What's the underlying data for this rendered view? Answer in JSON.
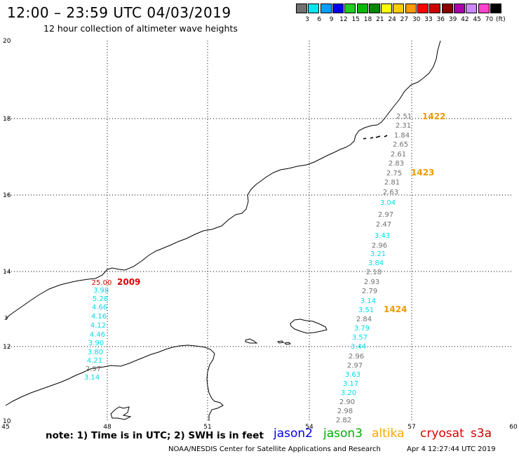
{
  "header": {
    "title": "12:00 – 23:59 UTC 04/03/2019",
    "subtitle": "12 hour collection of altimeter wave heights"
  },
  "colorbar": {
    "unit": "(ft)",
    "items": [
      {
        "color": "#707070",
        "label": "3"
      },
      {
        "color": "#00e5ee",
        "label": "6"
      },
      {
        "color": "#00a0ff",
        "label": "9"
      },
      {
        "color": "#0000ee",
        "label": "12"
      },
      {
        "color": "#22cc22",
        "label": "15"
      },
      {
        "color": "#00bb00",
        "label": "18"
      },
      {
        "color": "#008800",
        "label": "21"
      },
      {
        "color": "#ffff00",
        "label": "24"
      },
      {
        "color": "#ffcc00",
        "label": "27"
      },
      {
        "color": "#ff9900",
        "label": "30"
      },
      {
        "color": "#ff0000",
        "label": "33"
      },
      {
        "color": "#cc0000",
        "label": "36"
      },
      {
        "color": "#8b0000",
        "label": "39"
      },
      {
        "color": "#aa00aa",
        "label": "42"
      },
      {
        "color": "#cc88ff",
        "label": "45"
      },
      {
        "color": "#ff44cc",
        "label": "70"
      },
      {
        "color": "#000000",
        "label": ""
      }
    ]
  },
  "map": {
    "x_ticks": [
      "45",
      "48",
      "51",
      "54",
      "57",
      "60"
    ],
    "y_ticks": [
      "20",
      "18",
      "16",
      "14",
      "12",
      "10"
    ],
    "stray_label": "3"
  },
  "readings": [
    {
      "text": "2.51",
      "color": "#707070"
    },
    {
      "text": "2.31",
      "color": "#707070"
    },
    {
      "text": "1.84",
      "color": "#707070"
    },
    {
      "text": "2.65",
      "color": "#707070"
    },
    {
      "text": "2.61",
      "color": "#707070"
    },
    {
      "text": "2.83",
      "color": "#707070"
    },
    {
      "text": "2.75",
      "color": "#707070"
    },
    {
      "text": "2.81",
      "color": "#707070"
    },
    {
      "text": "2.63",
      "color": "#707070"
    },
    {
      "text": "3.04",
      "color": "#00dde8"
    },
    {
      "text": "2.97",
      "color": "#707070"
    },
    {
      "text": "2.47",
      "color": "#707070"
    },
    {
      "text": "3.43",
      "color": "#00dde8"
    },
    {
      "text": "2.96",
      "color": "#707070"
    },
    {
      "text": "3.21",
      "color": "#00dde8"
    },
    {
      "text": "3.84",
      "color": "#00dde8"
    },
    {
      "text": "2.18",
      "color": "#707070"
    },
    {
      "text": "2.93",
      "color": "#707070"
    },
    {
      "text": "2.79",
      "color": "#707070"
    },
    {
      "text": "3.14",
      "color": "#00dde8"
    },
    {
      "text": "3.51",
      "color": "#00dde8"
    },
    {
      "text": "2.84",
      "color": "#707070"
    },
    {
      "text": "3.79",
      "color": "#00dde8"
    },
    {
      "text": "3.57",
      "color": "#00dde8"
    },
    {
      "text": "3.44",
      "color": "#00dde8"
    },
    {
      "text": "2.96",
      "color": "#707070"
    },
    {
      "text": "2.97",
      "color": "#707070"
    },
    {
      "text": "3.63",
      "color": "#00dde8"
    },
    {
      "text": "3.17",
      "color": "#00dde8"
    },
    {
      "text": "3.20",
      "color": "#00dde8"
    },
    {
      "text": "2.90",
      "color": "#707070"
    },
    {
      "text": "2.98",
      "color": "#707070"
    },
    {
      "text": "2.82",
      "color": "#707070"
    },
    {
      "text": "25.00",
      "color": "#dd0000"
    },
    {
      "text": "3.98",
      "color": "#00dde8"
    },
    {
      "text": "5.28",
      "color": "#00dde8"
    },
    {
      "text": "4.66",
      "color": "#00dde8"
    },
    {
      "text": "4.16",
      "color": "#00dde8"
    },
    {
      "text": "4.12",
      "color": "#00dde8"
    },
    {
      "text": "4.46",
      "color": "#00dde8"
    },
    {
      "text": "3.90",
      "color": "#00dde8"
    },
    {
      "text": "3.80",
      "color": "#00dde8"
    },
    {
      "text": "4.21",
      "color": "#00dde8"
    },
    {
      "text": "2.97",
      "color": "#707070"
    },
    {
      "text": "3.14",
      "color": "#00dde8"
    }
  ],
  "pass_labels": [
    {
      "text": "1422",
      "color": "#ee9900"
    },
    {
      "text": "1423",
      "color": "#ee9900"
    },
    {
      "text": "1424",
      "color": "#ee9900"
    },
    {
      "text": "2009",
      "color": "#dd0000"
    }
  ],
  "footer": {
    "note": "note: 1) Time is in UTC; 2) SWH is in feet",
    "legend": [
      {
        "text": "jason2",
        "color": "#0000ee"
      },
      {
        "text": "jason3",
        "color": "#00aa00"
      },
      {
        "text": "altika",
        "color": "#ffa500"
      },
      {
        "text": "cryosat",
        "color": "#dd0000"
      },
      {
        "text": "s3a",
        "color": "#cc0000"
      }
    ],
    "center": "NOAA/NESDIS Center for Satellite Applications and Research",
    "timestamp": "Apr  4 12:27:44 UTC 2019"
  }
}
